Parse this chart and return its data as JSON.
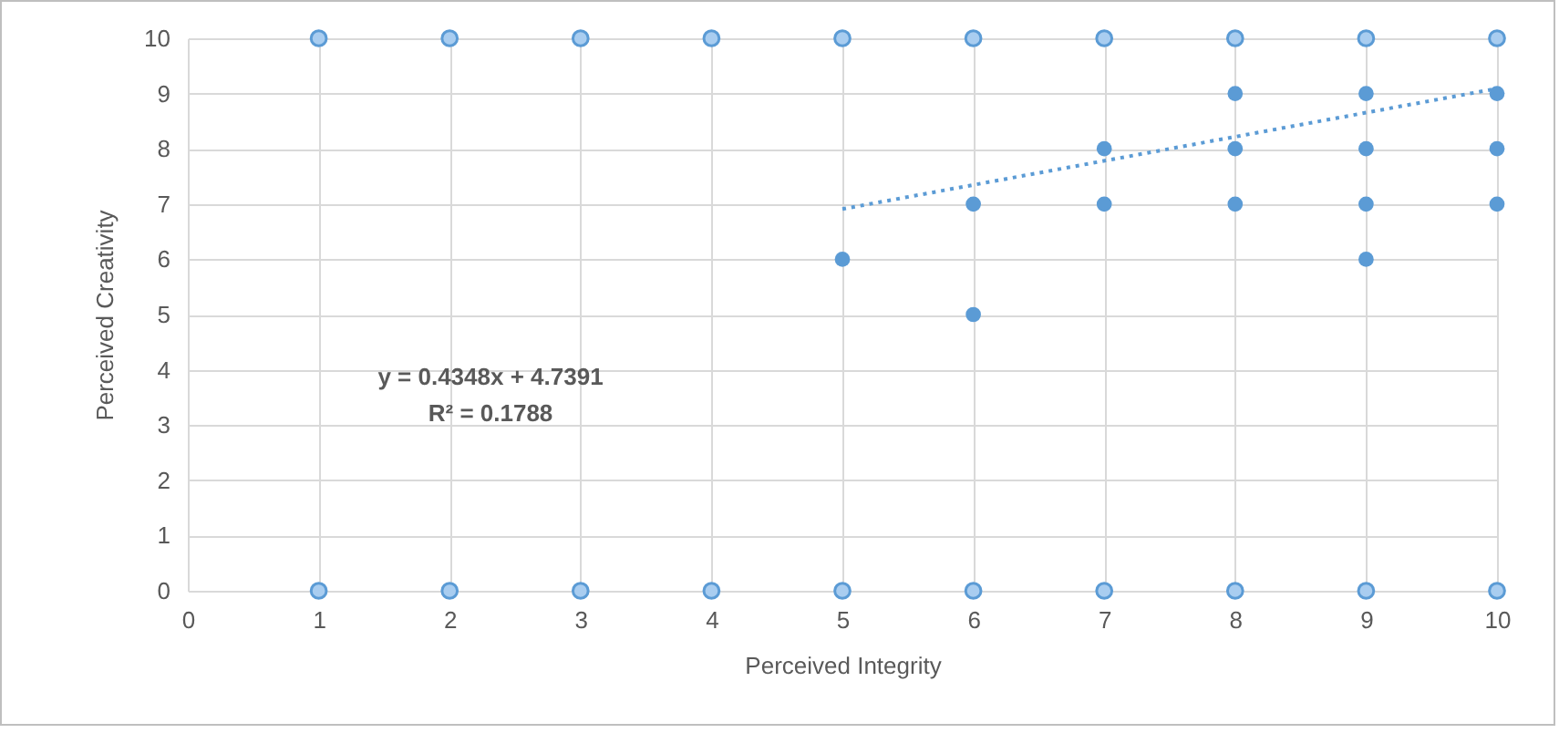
{
  "chart_data": {
    "type": "scatter",
    "xlabel": "Perceived Integrity",
    "ylabel": "Perceived Creativity",
    "xlim": [
      0,
      10
    ],
    "xticks": [
      0,
      1,
      2,
      3,
      4,
      5,
      6,
      7,
      8,
      9,
      10
    ],
    "ylim": [
      0,
      10
    ],
    "yticks": [
      0,
      1,
      2,
      3,
      4,
      5,
      6,
      7,
      8,
      9,
      10
    ],
    "grid": true,
    "marker": "circle",
    "series": [
      {
        "color": "#a9cdf0",
        "x": [
          1,
          2,
          3,
          4,
          5,
          6,
          7,
          8,
          9,
          10,
          1,
          2,
          3,
          4,
          5,
          6,
          7,
          8,
          9,
          10
        ],
        "values": [
          10,
          10,
          10,
          10,
          10,
          10,
          10,
          10,
          10,
          10,
          0,
          0,
          0,
          0,
          0,
          0,
          0,
          0,
          0,
          0
        ]
      },
      {
        "color": "#5b9bd5",
        "x": [
          5,
          6,
          6,
          7,
          7,
          8,
          8,
          8,
          9,
          9,
          9,
          9,
          10,
          10,
          10
        ],
        "values": [
          6,
          7,
          5,
          8,
          7,
          9,
          8,
          7,
          9,
          8,
          7,
          6,
          9,
          8,
          7
        ]
      },
      {
        "type": "line",
        "color": "#5b9bd5",
        "line_style": "dotted",
        "marker": "none",
        "x": [
          5,
          10
        ],
        "values": [
          6.91,
          9.09
        ]
      }
    ],
    "annotations": [
      "y = 0.4348x + 4.7391",
      "R² = 0.1788"
    ]
  }
}
